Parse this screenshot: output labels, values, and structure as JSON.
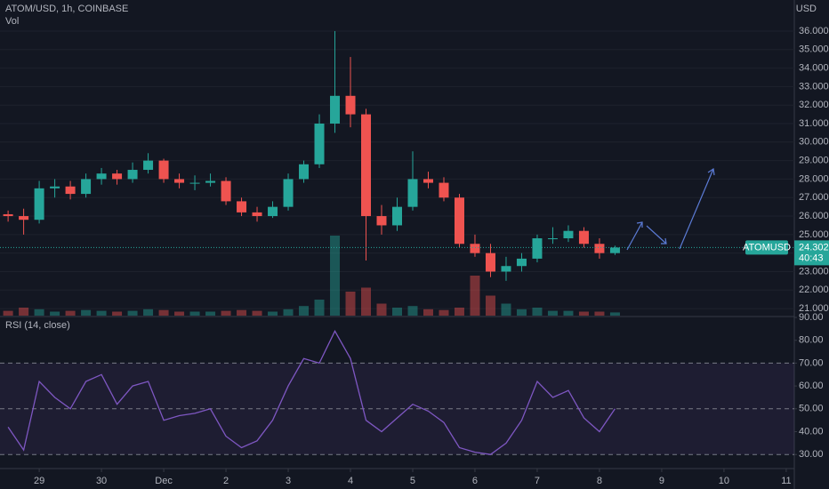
{
  "header": {
    "symbol_line": "ATOM/USD, 1h, COINBASE",
    "volume_label": "Vol",
    "currency": "USD"
  },
  "chart_data": [
    {
      "type": "candlestick",
      "x": [
        28.5,
        28.75,
        29,
        29.25,
        29.5,
        29.75,
        30,
        30.25,
        30.5,
        30.75,
        31,
        31.25,
        31.5,
        31.75,
        32,
        32.25,
        32.5,
        32.75,
        33,
        33.25,
        33.5,
        33.75,
        34,
        34.25,
        34.5,
        34.75,
        35,
        35.25,
        35.5,
        35.75,
        36,
        36.25,
        36.5,
        36.75,
        37,
        37.25,
        37.5,
        37.75,
        38,
        38.25
      ],
      "open": [
        26.1,
        26.0,
        25.8,
        27.5,
        27.6,
        27.2,
        28.0,
        28.3,
        28.0,
        28.5,
        29.0,
        28.0,
        27.8,
        27.8,
        27.9,
        26.8,
        26.2,
        26.0,
        26.5,
        28.0,
        28.8,
        31.0,
        32.5,
        31.5,
        26.0,
        25.5,
        26.5,
        28.0,
        27.8,
        27.0,
        24.5,
        24.0,
        23.0,
        23.3,
        23.7,
        24.8,
        24.8,
        25.2,
        24.5,
        24.0
      ],
      "high": [
        26.3,
        26.4,
        27.9,
        28.0,
        27.9,
        28.3,
        28.6,
        28.5,
        28.9,
        29.4,
        29.1,
        28.3,
        28.2,
        28.3,
        28.1,
        27.0,
        26.5,
        26.8,
        28.3,
        29.0,
        31.5,
        36.0,
        34.6,
        31.8,
        26.6,
        27.0,
        29.5,
        28.4,
        28.1,
        27.2,
        25.0,
        24.5,
        23.8,
        24.0,
        25.0,
        25.4,
        25.5,
        25.4,
        24.8,
        24.4
      ],
      "low": [
        25.7,
        25.0,
        25.6,
        27.0,
        26.9,
        27.0,
        27.7,
        27.7,
        27.8,
        28.3,
        27.8,
        27.5,
        27.4,
        27.6,
        26.6,
        26.0,
        25.7,
        25.9,
        26.3,
        27.8,
        28.6,
        30.5,
        30.8,
        23.6,
        25.0,
        25.2,
        26.3,
        27.5,
        26.8,
        24.3,
        23.8,
        22.7,
        22.5,
        23.0,
        23.5,
        24.5,
        24.6,
        24.3,
        23.7,
        23.9
      ],
      "close": [
        26.0,
        25.8,
        27.5,
        27.6,
        27.2,
        28.0,
        28.3,
        28.0,
        28.5,
        29.0,
        28.0,
        27.8,
        27.8,
        27.9,
        26.8,
        26.2,
        26.0,
        26.5,
        28.0,
        28.8,
        31.0,
        32.5,
        31.5,
        26.0,
        25.5,
        26.5,
        28.0,
        27.8,
        27.0,
        24.5,
        24.0,
        23.0,
        23.3,
        23.7,
        24.8,
        24.8,
        25.2,
        24.5,
        24.0,
        24.3
      ],
      "volume": [
        6,
        10,
        8,
        5,
        6,
        7,
        6,
        5,
        6,
        8,
        7,
        5,
        5,
        5,
        6,
        7,
        6,
        5,
        8,
        12,
        20,
        100,
        30,
        35,
        15,
        10,
        12,
        8,
        7,
        10,
        50,
        25,
        15,
        8,
        10,
        6,
        6,
        5,
        5,
        4
      ],
      "up_color": "#26a69a",
      "down_color": "#ef5350",
      "ylim": [
        20.62,
        37.68
      ],
      "yticks": [
        {
          "value": 21,
          "label": "21.000"
        },
        {
          "value": 22,
          "label": "22.000"
        },
        {
          "value": 23,
          "label": "23.000"
        },
        {
          "value": 24,
          "label": "24.000"
        },
        {
          "value": 25,
          "label": "25.000"
        },
        {
          "value": 26,
          "label": "26.000"
        },
        {
          "value": 27,
          "label": "27.000"
        },
        {
          "value": 28,
          "label": "28.000"
        },
        {
          "value": 29,
          "label": "29.000"
        },
        {
          "value": 30,
          "label": "30.000"
        },
        {
          "value": 31,
          "label": "31.000"
        },
        {
          "value": 32,
          "label": "32.000"
        },
        {
          "value": 33,
          "label": "33.000"
        },
        {
          "value": 34,
          "label": "34.000"
        },
        {
          "value": 35,
          "label": "35.000"
        },
        {
          "value": 36,
          "label": "36.000"
        }
      ],
      "xlim": [
        28.37,
        41.13
      ],
      "last_price": {
        "symbol": "ATOMUSD",
        "value": 24.302,
        "countdown": "40:43"
      }
    },
    {
      "type": "line",
      "title": "RSI (14, close)",
      "color": "#7e57c2",
      "x": [
        28.5,
        28.75,
        29,
        29.25,
        29.5,
        29.75,
        30,
        30.25,
        30.5,
        30.75,
        31,
        31.25,
        31.5,
        31.75,
        32,
        32.25,
        32.5,
        32.75,
        33,
        33.25,
        33.5,
        33.75,
        34,
        34.25,
        34.5,
        34.75,
        35,
        35.25,
        35.5,
        35.75,
        36,
        36.25,
        36.5,
        36.75,
        37,
        37.25,
        37.5,
        37.75,
        38,
        38.25
      ],
      "values": [
        42,
        32,
        62,
        55,
        50,
        62,
        65,
        52,
        60,
        62,
        45,
        47,
        48,
        50,
        38,
        33,
        36,
        45,
        60,
        72,
        70,
        84,
        72,
        45,
        40,
        46,
        52,
        49,
        44,
        33,
        31,
        30,
        35,
        45,
        62,
        55,
        58,
        46,
        40,
        50
      ],
      "levels": [
        70,
        50,
        30
      ],
      "ylim": [
        25.8,
        90
      ],
      "yticks": [
        {
          "value": 30,
          "label": "30.00"
        },
        {
          "value": 40,
          "label": "40.00"
        },
        {
          "value": 50,
          "label": "50.00"
        },
        {
          "value": 60,
          "label": "60.00"
        },
        {
          "value": 70,
          "label": "70.00"
        },
        {
          "value": 80,
          "label": "80.00"
        },
        {
          "value": 90,
          "label": "90.00"
        }
      ],
      "xlim": [
        28.37,
        41.13
      ],
      "xticks": [
        29,
        30,
        {
          "value": 31,
          "label": "Dec"
        },
        {
          "value": 32,
          "label": "2"
        },
        {
          "value": 33,
          "label": "3"
        },
        {
          "value": 34,
          "label": "4"
        },
        {
          "value": 35,
          "label": "5"
        },
        {
          "value": 36,
          "label": "6"
        },
        {
          "value": 37,
          "label": "7"
        },
        {
          "value": 38,
          "label": "8"
        },
        {
          "value": 39,
          "label": "9"
        },
        {
          "value": 40,
          "label": "10"
        },
        {
          "value": 41,
          "label": "11"
        }
      ]
    }
  ]
}
